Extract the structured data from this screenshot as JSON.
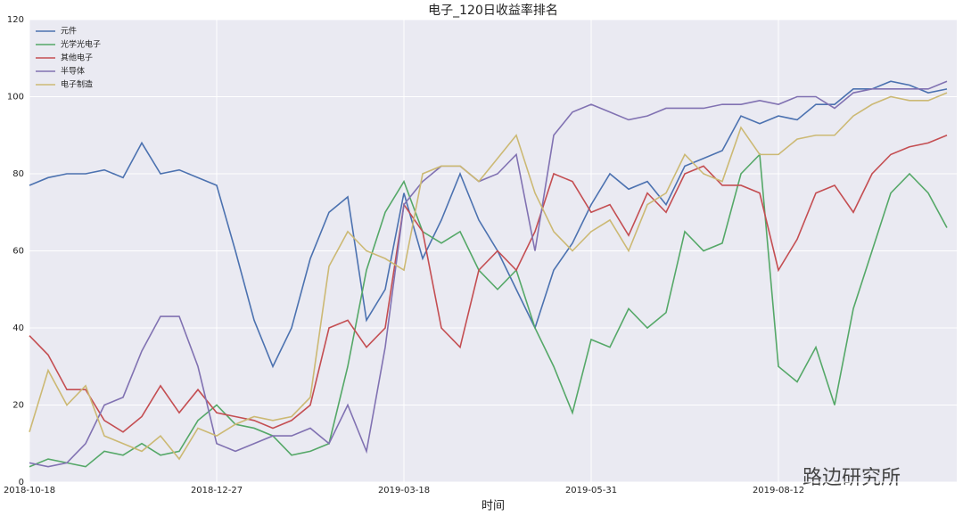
{
  "chart_data": {
    "type": "line",
    "title": "电子_120日收益率排名",
    "x_label": "时间",
    "watermark": "路边研究所",
    "categories": [
      "2018-10-18",
      null,
      null,
      null,
      null,
      null,
      null,
      null,
      null,
      null,
      "2018-12-27",
      null,
      null,
      null,
      null,
      null,
      null,
      null,
      null,
      null,
      "2019-03-18",
      null,
      null,
      null,
      null,
      null,
      null,
      null,
      null,
      null,
      "2019-05-31",
      null,
      null,
      null,
      null,
      null,
      null,
      null,
      null,
      null,
      "2019-08-12",
      null,
      null,
      null,
      null,
      null,
      null,
      null,
      null,
      null
    ],
    "ylim": [
      0,
      120
    ],
    "yticks": [
      0,
      20,
      40,
      60,
      80,
      100,
      120
    ],
    "grid": true,
    "legend": "upper-left",
    "series": [
      {
        "name": "元件",
        "color": "#4c72b0",
        "values": [
          77,
          79,
          80,
          80,
          81,
          79,
          88,
          80,
          81,
          79,
          77,
          60,
          42,
          30,
          40,
          58,
          70,
          74,
          42,
          50,
          75,
          58,
          68,
          80,
          68,
          60,
          50,
          40,
          55,
          62,
          72,
          80,
          76,
          78,
          72,
          82,
          84,
          86,
          95,
          93,
          95,
          94,
          98,
          98,
          102,
          102,
          104,
          103,
          101,
          102
        ]
      },
      {
        "name": "光学光电子",
        "color": "#55a868",
        "values": [
          4,
          6,
          5,
          4,
          8,
          7,
          10,
          7,
          8,
          16,
          20,
          15,
          14,
          12,
          7,
          8,
          10,
          30,
          55,
          70,
          78,
          65,
          62,
          65,
          55,
          50,
          55,
          40,
          30,
          18,
          37,
          35,
          45,
          40,
          44,
          65,
          60,
          62,
          80,
          85,
          30,
          26,
          35,
          20,
          45,
          60,
          75,
          80,
          75,
          66
        ]
      },
      {
        "name": "其他电子",
        "color": "#c44e52",
        "values": [
          38,
          33,
          24,
          24,
          16,
          13,
          17,
          25,
          18,
          24,
          18,
          17,
          16,
          14,
          16,
          20,
          40,
          42,
          35,
          40,
          72,
          65,
          40,
          35,
          55,
          60,
          55,
          65,
          80,
          78,
          70,
          72,
          64,
          75,
          70,
          80,
          82,
          77,
          77,
          75,
          55,
          63,
          75,
          77,
          70,
          80,
          85,
          87,
          88,
          90
        ]
      },
      {
        "name": "半导体",
        "color": "#8172b2",
        "values": [
          5,
          4,
          5,
          10,
          20,
          22,
          34,
          43,
          43,
          30,
          10,
          8,
          10,
          12,
          12,
          14,
          10,
          20,
          8,
          35,
          72,
          78,
          82,
          82,
          78,
          80,
          85,
          60,
          90,
          96,
          98,
          96,
          94,
          95,
          97,
          97,
          97,
          98,
          98,
          99,
          98,
          100,
          100,
          97,
          101,
          102,
          102,
          102,
          102,
          104
        ]
      },
      {
        "name": "电子制造",
        "color": "#ccb974",
        "values": [
          13,
          29,
          20,
          25,
          12,
          10,
          8,
          12,
          6,
          14,
          12,
          15,
          17,
          16,
          17,
          22,
          56,
          65,
          60,
          58,
          55,
          80,
          82,
          82,
          78,
          84,
          90,
          75,
          65,
          60,
          65,
          68,
          60,
          72,
          75,
          85,
          80,
          78,
          92,
          85,
          85,
          89,
          90,
          90,
          95,
          98,
          100,
          99,
          99,
          101
        ]
      }
    ]
  }
}
